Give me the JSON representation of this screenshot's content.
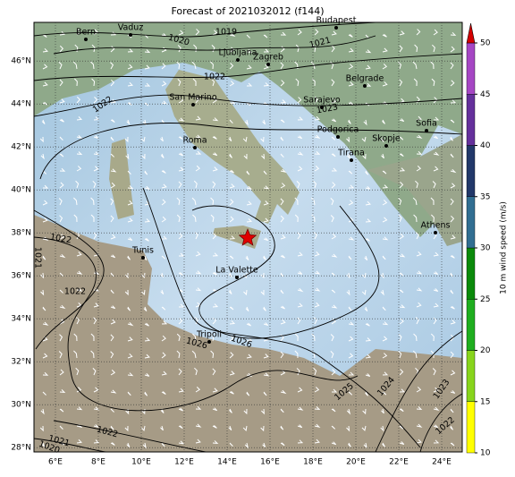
{
  "title": "Forecast of 2021032012 (f144)",
  "lon_ticks": [
    {
      "value": 6,
      "label": "6°E"
    },
    {
      "value": 8,
      "label": "8°E"
    },
    {
      "value": 10,
      "label": "10°E"
    },
    {
      "value": 12,
      "label": "12°E"
    },
    {
      "value": 14,
      "label": "14°E"
    },
    {
      "value": 16,
      "label": "16°E"
    },
    {
      "value": 18,
      "label": "18°E"
    },
    {
      "value": 20,
      "label": "20°E"
    },
    {
      "value": 22,
      "label": "22°E"
    },
    {
      "value": 24,
      "label": "24°E"
    }
  ],
  "lat_ticks": [
    {
      "value": 28,
      "label": "28°N"
    },
    {
      "value": 30,
      "label": "30°N"
    },
    {
      "value": 32,
      "label": "32°N"
    },
    {
      "value": 34,
      "label": "34°N"
    },
    {
      "value": 36,
      "label": "36°N"
    },
    {
      "value": 38,
      "label": "38°N"
    },
    {
      "value": 40,
      "label": "40°N"
    },
    {
      "value": 42,
      "label": "42°N"
    },
    {
      "value": 44,
      "label": "44°N"
    },
    {
      "value": 46,
      "label": "46°N"
    }
  ],
  "cities": [
    "Bern",
    "Vaduz",
    "Budapest",
    "Ljubljana",
    "Zagreb",
    "Belgrade",
    "San Marino",
    "Sarajevo",
    "Podgorica",
    "Sofia",
    "Skopje",
    "Roma",
    "Tirana",
    "Athens",
    "Tunis",
    "La Valette",
    "Tripoli"
  ],
  "contour_labels": [
    "1019",
    "1020",
    "1021",
    "1022",
    "1022",
    "1023",
    "1022",
    "1021",
    "1022",
    "1026",
    "1026",
    "1025",
    "1024",
    "1023",
    "1022",
    "1022",
    "1021",
    "1020"
  ],
  "colorbar": {
    "label": "10 m wind speed (m/s)",
    "lim": [
      10,
      50
    ],
    "ticks": [
      10,
      15,
      20,
      25,
      30,
      35,
      40,
      45,
      50
    ],
    "colors": [
      "#ffff00",
      "#88d41c",
      "#1fae1f",
      "#0b8a0b",
      "#316e92",
      "#22386a",
      "#65309c",
      "#a646c4"
    ],
    "over_color": "#d40000"
  }
}
